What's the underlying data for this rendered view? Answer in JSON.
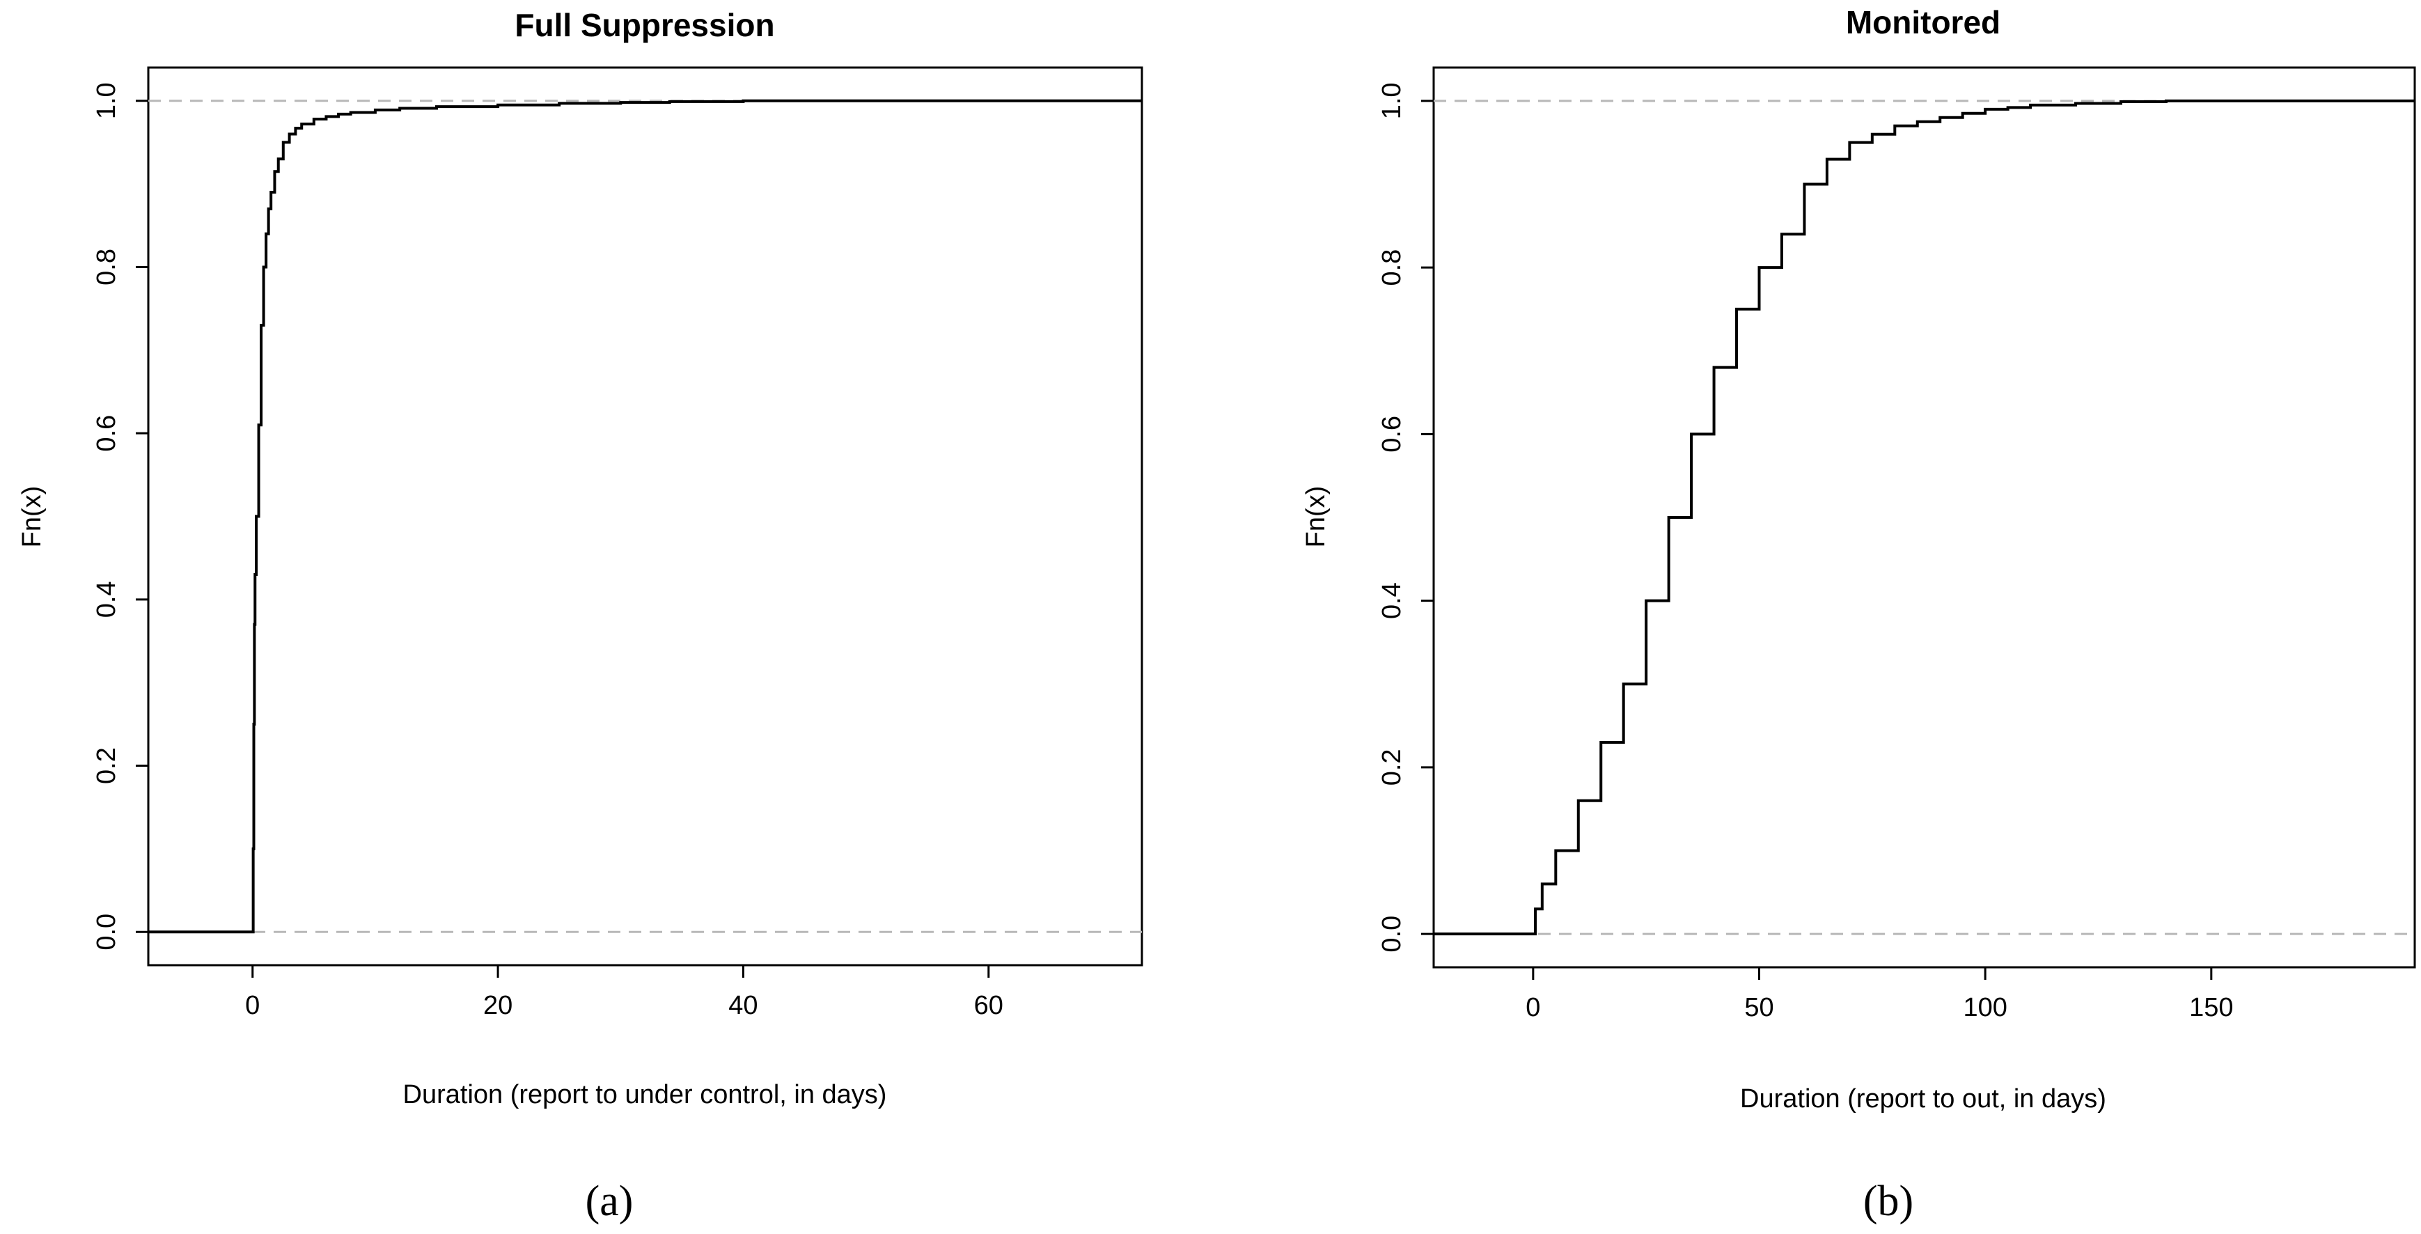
{
  "chart_data": [
    {
      "type": "line",
      "title": "Full Suppression",
      "xlabel": "Duration (report to under control, in  days)",
      "ylabel": "Fn(x)",
      "caption": "(a)",
      "xlim": [
        -8.5,
        72.5
      ],
      "ylim": [
        -0.04,
        1.04
      ],
      "xticks": [
        0,
        20,
        40,
        60
      ],
      "yticks": [
        0.0,
        0.2,
        0.4,
        0.6,
        0.8,
        1.0
      ],
      "xtick_labels": [
        "0",
        "20",
        "40",
        "60"
      ],
      "ytick_labels": [
        "0.0",
        "0.2",
        "0.4",
        "0.6",
        "0.8",
        "1.0"
      ],
      "reference_lines": [
        0,
        1
      ],
      "grid": false,
      "series": [
        {
          "x": [
            -8.5,
            0,
            0.05,
            0.1,
            0.15,
            0.2,
            0.3,
            0.5,
            0.7,
            0.9,
            1.1,
            1.3,
            1.5,
            1.8,
            2.1,
            2.5,
            3.0,
            3.5,
            4,
            5,
            6,
            7,
            8,
            10,
            12,
            15,
            20,
            25,
            30,
            34,
            40,
            50,
            60,
            72.5
          ],
          "y": [
            0,
            0,
            0.1,
            0.25,
            0.37,
            0.43,
            0.5,
            0.61,
            0.73,
            0.8,
            0.84,
            0.87,
            0.89,
            0.915,
            0.93,
            0.95,
            0.96,
            0.967,
            0.972,
            0.978,
            0.981,
            0.984,
            0.986,
            0.989,
            0.991,
            0.993,
            0.995,
            0.997,
            0.998,
            0.999,
            1,
            1,
            1,
            1
          ]
        }
      ]
    },
    {
      "type": "line",
      "title": "Monitored",
      "xlabel": "Duration (report to out, in days)",
      "ylabel": "Fn(x)",
      "caption": "(b)",
      "xlim": [
        -22,
        195
      ],
      "ylim": [
        -0.04,
        1.04
      ],
      "xticks": [
        0,
        50,
        100,
        150
      ],
      "yticks": [
        0.0,
        0.2,
        0.4,
        0.6,
        0.8,
        1.0
      ],
      "xtick_labels": [
        "0",
        "50",
        "100",
        "150"
      ],
      "ytick_labels": [
        "0.0",
        "0.2",
        "0.4",
        "0.6",
        "0.8",
        "1.0"
      ],
      "reference_lines": [
        0,
        1
      ],
      "grid": false,
      "series": [
        {
          "x": [
            -22,
            0,
            0.5,
            2,
            5,
            10,
            15,
            20,
            25,
            30,
            35,
            40,
            45,
            50,
            55,
            60,
            65,
            70,
            75,
            80,
            85,
            90,
            95,
            100,
            105,
            110,
            120,
            130,
            140,
            150,
            170,
            195
          ],
          "y": [
            0,
            0,
            0.03,
            0.06,
            0.1,
            0.16,
            0.23,
            0.3,
            0.4,
            0.5,
            0.6,
            0.68,
            0.75,
            0.8,
            0.84,
            0.9,
            0.93,
            0.95,
            0.96,
            0.97,
            0.975,
            0.98,
            0.985,
            0.99,
            0.992,
            0.995,
            0.997,
            0.999,
            1,
            1,
            1,
            1
          ]
        }
      ]
    }
  ]
}
